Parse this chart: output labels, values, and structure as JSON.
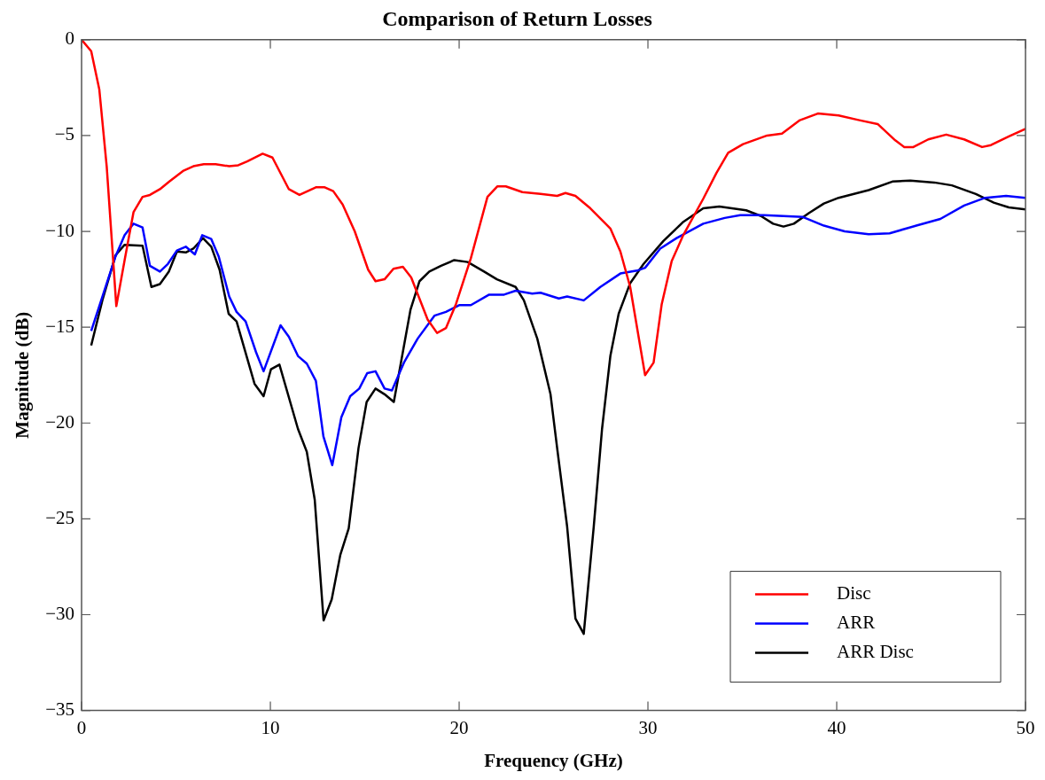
{
  "chart_data": {
    "type": "line",
    "title": "Comparison of Return Losses",
    "xlabel": "Frequency (GHz)",
    "ylabel": "Magnitude (dB)",
    "xlim": [
      0,
      50
    ],
    "ylim": [
      -35,
      0
    ],
    "xticks": [
      0,
      10,
      20,
      30,
      40,
      50
    ],
    "yticks": [
      -35,
      -30,
      -25,
      -20,
      -15,
      -10,
      -5,
      0
    ],
    "legend": "bottom right",
    "marker": "none",
    "line_style": "solid",
    "series": [
      {
        "name": "Disc",
        "color": "#ff0000",
        "x": [
          0,
          0.51,
          0.94,
          1.33,
          1.84,
          2.28,
          2.75,
          3.23,
          3.62,
          4.15,
          4.65,
          5.37,
          5.92,
          6.47,
          7.1,
          7.82,
          8.3,
          8.77,
          9.59,
          10.11,
          10.98,
          11.54,
          12.41,
          12.88,
          13.33,
          13.83,
          14.47,
          15.18,
          15.57,
          16.05,
          16.52,
          17.02,
          17.46,
          18.33,
          18.83,
          19.3,
          19.83,
          20.62,
          21.5,
          22.03,
          22.47,
          23.35,
          24.31,
          25.19,
          25.63,
          26.16,
          26.95,
          28.01,
          28.54,
          29.06,
          29.85,
          30.3,
          30.73,
          31.26,
          31.87,
          32.93,
          33.63,
          34.25,
          35.04,
          36.31,
          37.1,
          38.05,
          39.0,
          40.1,
          41.2,
          42.17,
          43.1,
          43.58,
          44.06,
          44.85,
          45.8,
          46.75,
          47.7,
          48.17,
          49.12,
          50
        ],
        "values": [
          0,
          -0.6,
          -2.6,
          -6.6,
          -13.9,
          -11.5,
          -9.0,
          -8.2,
          -8.1,
          -7.8,
          -7.4,
          -6.85,
          -6.6,
          -6.5,
          -6.5,
          -6.6,
          -6.55,
          -6.35,
          -5.95,
          -6.15,
          -7.8,
          -8.1,
          -7.7,
          -7.7,
          -7.9,
          -8.6,
          -10.0,
          -12.0,
          -12.6,
          -12.5,
          -11.95,
          -11.85,
          -12.4,
          -14.6,
          -15.3,
          -15.05,
          -13.8,
          -11.4,
          -8.2,
          -7.65,
          -7.65,
          -7.95,
          -8.05,
          -8.15,
          -8.0,
          -8.15,
          -8.8,
          -9.85,
          -11.05,
          -12.9,
          -17.5,
          -16.85,
          -13.8,
          -11.55,
          -10.2,
          -8.3,
          -6.95,
          -5.9,
          -5.45,
          -5.0,
          -4.9,
          -4.2,
          -3.85,
          -3.95,
          -4.2,
          -4.4,
          -5.25,
          -5.6,
          -5.6,
          -5.2,
          -4.95,
          -5.2,
          -5.6,
          -5.5,
          -5.05,
          -4.65
        ]
      },
      {
        "name": "ARR",
        "color": "#0000ff",
        "x": [
          0.51,
          1.8,
          2.28,
          2.75,
          3.23,
          3.62,
          4.15,
          4.57,
          5.05,
          5.52,
          6.0,
          6.39,
          6.87,
          7.26,
          7.82,
          8.21,
          8.69,
          9.24,
          9.64,
          10.54,
          10.98,
          11.46,
          11.93,
          12.41,
          12.81,
          13.28,
          13.76,
          14.23,
          14.71,
          15.13,
          15.57,
          16.05,
          16.44,
          17.1,
          17.8,
          18.69,
          19.3,
          20.0,
          20.62,
          21.59,
          22.38,
          22.99,
          23.87,
          24.31,
          25.28,
          25.72,
          26.6,
          27.48,
          28.54,
          29.42,
          29.85,
          30.65,
          31.52,
          32.93,
          34.07,
          34.89,
          36.15,
          38.21,
          39.32,
          40.42,
          41.69,
          42.8,
          44.22,
          45.49,
          46.75,
          47.86,
          48.97,
          50
        ],
        "values": [
          -15.2,
          -11.3,
          -10.2,
          -9.6,
          -9.8,
          -11.8,
          -12.1,
          -11.7,
          -11.0,
          -10.8,
          -11.2,
          -10.2,
          -10.4,
          -11.3,
          -13.4,
          -14.2,
          -14.7,
          -16.3,
          -17.3,
          -14.9,
          -15.5,
          -16.5,
          -16.9,
          -17.8,
          -20.7,
          -22.2,
          -19.7,
          -18.6,
          -18.2,
          -17.4,
          -17.3,
          -18.2,
          -18.3,
          -16.8,
          -15.6,
          -14.4,
          -14.2,
          -13.85,
          -13.85,
          -13.3,
          -13.3,
          -13.1,
          -13.25,
          -13.2,
          -13.5,
          -13.4,
          -13.6,
          -12.9,
          -12.2,
          -12.05,
          -11.9,
          -10.9,
          -10.35,
          -9.6,
          -9.3,
          -9.15,
          -9.15,
          -9.25,
          -9.7,
          -10.0,
          -10.15,
          -10.1,
          -9.7,
          -9.35,
          -8.65,
          -8.25,
          -8.15,
          -8.25
        ]
      },
      {
        "name": "ARR Disc",
        "color": "#000000",
        "x": [
          0.51,
          1.1,
          1.8,
          2.28,
          3.23,
          3.7,
          4.15,
          4.62,
          5.05,
          5.52,
          5.92,
          6.43,
          6.87,
          7.31,
          7.79,
          8.21,
          9.16,
          9.64,
          10.03,
          10.48,
          11.46,
          11.93,
          12.35,
          12.82,
          13.25,
          13.7,
          14.15,
          14.67,
          15.1,
          15.57,
          16.05,
          16.54,
          17.42,
          17.9,
          18.42,
          19.04,
          19.74,
          20.45,
          21.32,
          22.0,
          22.99,
          23.43,
          24.14,
          24.84,
          25.19,
          25.72,
          26.16,
          26.6,
          27.13,
          27.57,
          28.01,
          28.45,
          29.06,
          29.77,
          30.82,
          31.88,
          32.93,
          33.78,
          35.2,
          35.99,
          36.63,
          37.18,
          37.73,
          38.52,
          39.32,
          40.1,
          41.69,
          42.95,
          43.9,
          45.17,
          46.1,
          47.37,
          48.32,
          49.12,
          50
        ],
        "values": [
          -15.95,
          -13.6,
          -11.25,
          -10.7,
          -10.75,
          -12.9,
          -12.75,
          -12.1,
          -11.05,
          -11.1,
          -10.9,
          -10.35,
          -10.8,
          -12.0,
          -14.3,
          -14.7,
          -17.95,
          -18.6,
          -17.2,
          -16.95,
          -20.3,
          -21.5,
          -24.0,
          -30.3,
          -29.2,
          -26.9,
          -25.5,
          -21.3,
          -18.9,
          -18.2,
          -18.5,
          -18.9,
          -14.1,
          -12.6,
          -12.1,
          -11.8,
          -11.5,
          -11.6,
          -12.1,
          -12.5,
          -12.9,
          -13.6,
          -15.6,
          -18.5,
          -21.3,
          -25.4,
          -30.2,
          -31.0,
          -25.4,
          -20.3,
          -16.5,
          -14.3,
          -12.7,
          -11.7,
          -10.5,
          -9.5,
          -8.8,
          -8.7,
          -8.9,
          -9.2,
          -9.6,
          -9.75,
          -9.6,
          -9.05,
          -8.55,
          -8.25,
          -7.85,
          -7.4,
          -7.35,
          -7.45,
          -7.6,
          -8.05,
          -8.5,
          -8.75,
          -8.85
        ]
      }
    ]
  }
}
